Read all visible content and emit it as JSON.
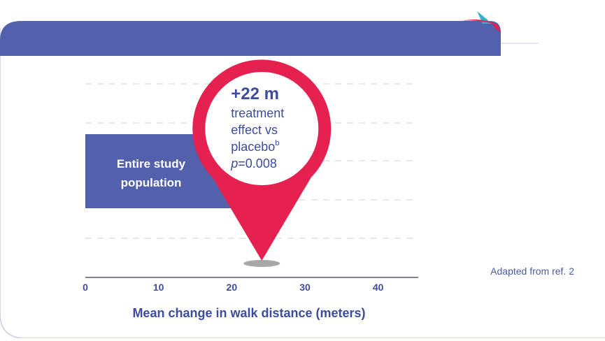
{
  "colors": {
    "header": "#5360ab",
    "bar": "#5360ab",
    "pin": "#e5224f",
    "text": "#3d4c9e",
    "grid": "#d3d3d3",
    "border": "#c9cde4",
    "logo_teal": "#33b1cf",
    "logo_pink": "#e5224f"
  },
  "source_note": "Adapted from ref. 2",
  "callout": {
    "headline": "+22 m",
    "line1": "treatment",
    "line2": "effect vs",
    "line3_main": "placebo",
    "line3_sup": "b",
    "p_symbol": "p",
    "p_rest": "=0.008"
  },
  "chart_data": {
    "type": "bar",
    "orientation": "horizontal",
    "categories": [
      "Entire study population"
    ],
    "category_label_lines": [
      "Entire study",
      "population"
    ],
    "values": [
      22
    ],
    "xlim": [
      0,
      45
    ],
    "xticks": [
      0,
      10,
      20,
      30,
      40
    ],
    "tick_labels": [
      "0",
      "10",
      "20",
      "30",
      "40"
    ],
    "xlabel": "Mean change in walk distance (meters)",
    "ylabel": "",
    "grid": "horizontal dashed",
    "annotation": "Pin marker at 22 m"
  }
}
